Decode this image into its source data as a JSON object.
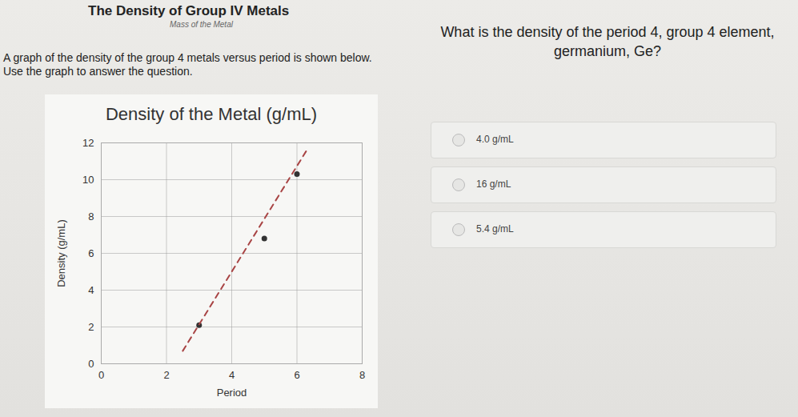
{
  "page": {
    "heading": "The Density of Group IV Metals",
    "subheading": "Mass of the Metal",
    "instructions": "A graph of the density of the group 4 metals versus period is shown below. Use the graph to answer the question.",
    "question": "What is the density of the period 4, group 4 element, germanium, Ge?",
    "options": [
      "4.0 g/mL",
      "16 g/mL",
      "5.4 g/mL"
    ]
  },
  "chart_data": {
    "type": "scatter",
    "title": "Density of the Metal (g/mL)",
    "x_label": "Period",
    "y_label": "Density (g/mL)",
    "xlim": [
      0,
      8
    ],
    "xticks": [
      0,
      2,
      4,
      6,
      8
    ],
    "ylim": [
      0,
      12
    ],
    "yticks": [
      0,
      2,
      4,
      6,
      8,
      10,
      12
    ],
    "grid": true,
    "series": [
      {
        "type": "scatter",
        "marker": "circle",
        "color": "#333333",
        "x": [
          3,
          5,
          6
        ],
        "values": [
          2.1,
          6.8,
          10.3
        ]
      },
      {
        "type": "line",
        "line_style": "dashed",
        "color": "#a84444",
        "x": [
          2.5,
          6.3
        ],
        "values": [
          0.7,
          11.6
        ]
      }
    ]
  }
}
